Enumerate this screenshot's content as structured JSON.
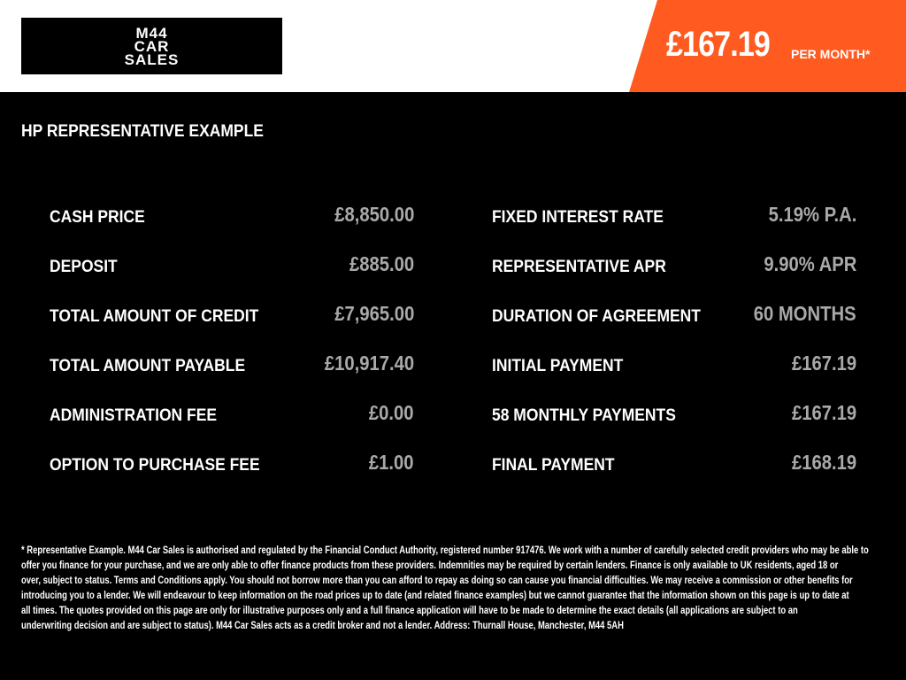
{
  "header": {
    "logo_text": "M44\nCAR\nSALES",
    "monthly_price": "£167.19",
    "per_month_label": "PER MONTH*",
    "accent_color": "#ff5a1f"
  },
  "main": {
    "heading": "HP REPRESENTATIVE EXAMPLE",
    "left_rows": [
      {
        "label": "CASH PRICE",
        "value": "£8,850.00"
      },
      {
        "label": "DEPOSIT",
        "value": "£885.00"
      },
      {
        "label": "TOTAL AMOUNT OF CREDIT",
        "value": "£7,965.00"
      },
      {
        "label": "TOTAL AMOUNT PAYABLE",
        "value": "£10,917.40"
      },
      {
        "label": "ADMINISTRATION FEE",
        "value": "£0.00"
      },
      {
        "label": "OPTION TO PURCHASE FEE",
        "value": "£1.00"
      }
    ],
    "right_rows": [
      {
        "label": "FIXED INTEREST RATE",
        "value": "5.19% P.A."
      },
      {
        "label": "REPRESENTATIVE APR",
        "value": "9.90% APR"
      },
      {
        "label": "DURATION OF AGREEMENT",
        "value": "60 MONTHS"
      },
      {
        "label": "INITIAL PAYMENT",
        "value": "£167.19"
      },
      {
        "label": "58 MONTHLY PAYMENTS",
        "value": "£167.19"
      },
      {
        "label": "FINAL PAYMENT",
        "value": "£168.19"
      }
    ]
  },
  "footer": {
    "lines": [
      "* Representative Example. M44 Car Sales is authorised and regulated by the Financial Conduct Authority, registered number 917476. We work with a number of carefully selected credit providers who may be able to",
      "offer you finance for your purchase, and we are only able to offer finance products from these providers. Indemnities may be required by certain lenders. Finance is only available to UK residents, aged 18 or",
      "over, subject to status. Terms and Conditions apply. You should not borrow more than you can afford to repay as doing so can cause you financial difficulties. We may receive a commission or other benefits for",
      "introducing you to a lender. We will endeavour to keep information on the road prices up to date (and related finance examples) but we cannot guarantee that the information shown on this page is up to date at",
      "all times. The quotes provided on this page are only for illustrative purposes only and a full finance application will have to be made to determine the exact details (all applications are subject to an",
      "underwriting decision and are subject to status). M44 Car Sales acts as a credit broker and not a lender. Address: Thurnall House, Manchester, M44 5AH"
    ]
  }
}
